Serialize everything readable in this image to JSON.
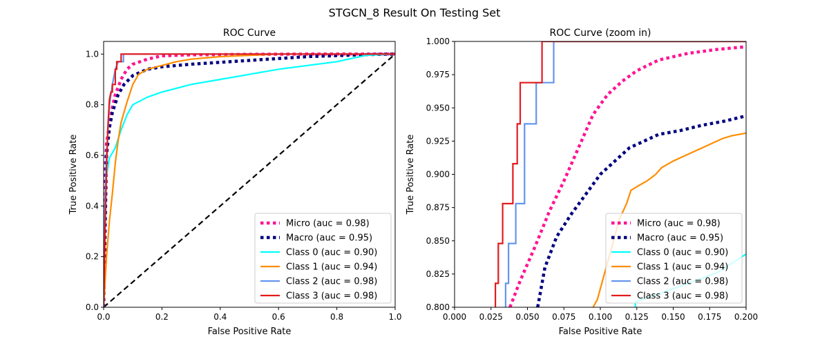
{
  "figure": {
    "suptitle": "STGCN_8 Result On Testing Set"
  },
  "legend_labels": [
    "Micro (auc = 0.98)",
    "Macro (auc = 0.95)",
    "Class 0 (auc = 0.90)",
    "Class 1 (auc = 0.94)",
    "Class 2 (auc = 0.98)",
    "Class 3 (auc = 0.98)"
  ],
  "colors": {
    "micro": "#ff1493",
    "macro": "#000080",
    "class0": "#00ffff",
    "class1": "#ff8c00",
    "class2": "#6495ed",
    "class3": "#e31a1c",
    "diagonal": "#000000"
  },
  "chart_data": [
    {
      "type": "line",
      "title": "ROC Curve",
      "xlabel": "False Positive Rate",
      "ylabel": "True Positive Rate",
      "xlim": [
        0,
        1
      ],
      "ylim": [
        0,
        1.05
      ],
      "xticks": [
        "0.0",
        "0.2",
        "0.4",
        "0.6",
        "0.8",
        "1.0"
      ],
      "yticks": [
        "0.0",
        "0.2",
        "0.4",
        "0.6",
        "0.8",
        "1.0"
      ],
      "legend_position": "lower-right",
      "grid": false,
      "series": [
        {
          "name": "Micro (auc = 0.98)",
          "style": "dotted",
          "x": [
            0,
            0.005,
            0.01,
            0.02,
            0.03,
            0.04,
            0.05,
            0.06,
            0.08,
            0.1,
            0.15,
            0.2,
            0.3,
            0.5,
            0.7,
            1.0
          ],
          "y": [
            0,
            0.52,
            0.65,
            0.72,
            0.79,
            0.84,
            0.87,
            0.9,
            0.94,
            0.96,
            0.98,
            0.993,
            0.997,
            0.999,
            1.0,
            1.0
          ]
        },
        {
          "name": "Macro (auc = 0.95)",
          "style": "dotted",
          "x": [
            0,
            0.01,
            0.02,
            0.03,
            0.05,
            0.07,
            0.1,
            0.15,
            0.2,
            0.3,
            0.5,
            0.7,
            0.9,
            1.0
          ],
          "y": [
            0,
            0.6,
            0.71,
            0.77,
            0.84,
            0.88,
            0.915,
            0.94,
            0.95,
            0.96,
            0.975,
            0.99,
            0.998,
            1.0
          ]
        },
        {
          "name": "Class 0 (auc = 0.90)",
          "style": "solid",
          "x": [
            0,
            0.005,
            0.01,
            0.02,
            0.04,
            0.06,
            0.08,
            0.1,
            0.15,
            0.2,
            0.3,
            0.4,
            0.5,
            0.6,
            0.7,
            0.8,
            0.9,
            1.0
          ],
          "y": [
            0,
            0.45,
            0.52,
            0.59,
            0.63,
            0.7,
            0.76,
            0.8,
            0.83,
            0.85,
            0.88,
            0.9,
            0.92,
            0.94,
            0.955,
            0.97,
            0.995,
            1.0
          ]
        },
        {
          "name": "Class 1 (auc = 0.94)",
          "style": "solid",
          "x": [
            0,
            0.01,
            0.02,
            0.03,
            0.04,
            0.05,
            0.06,
            0.08,
            0.1,
            0.12,
            0.15,
            0.2,
            0.25,
            0.3,
            0.4,
            0.5,
            0.6,
            0.8,
            1.0
          ],
          "y": [
            0,
            0.2,
            0.34,
            0.45,
            0.57,
            0.66,
            0.73,
            0.81,
            0.88,
            0.92,
            0.94,
            0.955,
            0.97,
            0.98,
            0.99,
            0.995,
            1.0,
            1.0,
            1.0
          ]
        },
        {
          "name": "Class 2 (auc = 0.98)",
          "style": "solid",
          "x": [
            0,
            0.005,
            0.01,
            0.02,
            0.03,
            0.04,
            0.05,
            0.06,
            0.068,
            0.068,
            1.0
          ],
          "y": [
            0,
            0.42,
            0.6,
            0.8,
            0.88,
            0.94,
            0.97,
            0.97,
            0.97,
            1.0,
            1.0
          ]
        },
        {
          "name": "Class 3 (auc = 0.98)",
          "style": "solid",
          "x": [
            0,
            0.005,
            0.01,
            0.015,
            0.02,
            0.025,
            0.03,
            0.03,
            0.04,
            0.04,
            0.045,
            0.045,
            0.06,
            0.06,
            1.0
          ],
          "y": [
            0,
            0.3,
            0.55,
            0.72,
            0.82,
            0.85,
            0.85,
            0.88,
            0.88,
            0.94,
            0.94,
            0.97,
            0.97,
            1.0,
            1.0
          ]
        }
      ]
    },
    {
      "type": "line",
      "title": "ROC Curve (zoom in)",
      "xlabel": "False Positive Rate",
      "ylabel": "True Positive Rate",
      "xlim": [
        0,
        0.2
      ],
      "ylim": [
        0.8,
        1.0
      ],
      "xticks": [
        "0.000",
        "0.025",
        "0.050",
        "0.075",
        "0.100",
        "0.125",
        "0.150",
        "0.175",
        "0.200"
      ],
      "yticks": [
        "0.800",
        "0.825",
        "0.850",
        "0.875",
        "0.900",
        "0.925",
        "0.950",
        "0.975",
        "1.000"
      ],
      "legend_position": "lower-right",
      "grid": false,
      "series": [
        {
          "name": "Micro (auc = 0.98)",
          "style": "dotted",
          "x": [
            0.038,
            0.045,
            0.055,
            0.065,
            0.075,
            0.085,
            0.095,
            0.105,
            0.115,
            0.125,
            0.14,
            0.16,
            0.18,
            0.2
          ],
          "y": [
            0.8,
            0.82,
            0.845,
            0.872,
            0.895,
            0.92,
            0.945,
            0.96,
            0.97,
            0.978,
            0.986,
            0.991,
            0.994,
            0.996
          ]
        },
        {
          "name": "Macro (auc = 0.95)",
          "style": "dotted",
          "x": [
            0.057,
            0.062,
            0.07,
            0.08,
            0.09,
            0.1,
            0.11,
            0.12,
            0.13,
            0.14,
            0.155,
            0.17,
            0.185,
            0.2
          ],
          "y": [
            0.8,
            0.83,
            0.853,
            0.87,
            0.885,
            0.9,
            0.91,
            0.92,
            0.925,
            0.93,
            0.933,
            0.937,
            0.94,
            0.944
          ]
        },
        {
          "name": "Class 0 (auc = 0.90)",
          "style": "solid",
          "x": [
            0.124,
            0.124,
            0.14,
            0.16,
            0.18,
            0.19,
            0.2
          ],
          "y": [
            0.8,
            0.804,
            0.81,
            0.818,
            0.826,
            0.833,
            0.84
          ]
        },
        {
          "name": "Class 1 (auc = 0.94)",
          "style": "solid",
          "x": [
            0.095,
            0.098,
            0.101,
            0.104,
            0.107,
            0.11,
            0.113,
            0.118,
            0.121,
            0.127,
            0.132,
            0.138,
            0.142,
            0.15,
            0.158,
            0.166,
            0.172,
            0.178,
            0.184,
            0.19,
            0.2
          ],
          "y": [
            0.8,
            0.806,
            0.818,
            0.83,
            0.842,
            0.854,
            0.866,
            0.878,
            0.888,
            0.892,
            0.895,
            0.9,
            0.905,
            0.91,
            0.914,
            0.918,
            0.921,
            0.924,
            0.927,
            0.929,
            0.931
          ]
        },
        {
          "name": "Class 2 (auc = 0.98)",
          "style": "solid",
          "x": [
            0.035,
            0.035,
            0.037,
            0.037,
            0.042,
            0.042,
            0.048,
            0.048,
            0.056,
            0.056,
            0.062,
            0.062,
            0.068,
            0.068,
            0.2
          ],
          "y": [
            0.8,
            0.818,
            0.818,
            0.848,
            0.848,
            0.878,
            0.878,
            0.938,
            0.938,
            0.969,
            0.969,
            0.969,
            0.969,
            1.0,
            1.0
          ]
        },
        {
          "name": "Class 3 (auc = 0.98)",
          "style": "solid",
          "x": [
            0.028,
            0.028,
            0.03,
            0.03,
            0.033,
            0.033,
            0.04,
            0.04,
            0.043,
            0.043,
            0.045,
            0.045,
            0.06,
            0.06,
            0.2
          ],
          "y": [
            0.8,
            0.818,
            0.818,
            0.848,
            0.848,
            0.878,
            0.878,
            0.908,
            0.908,
            0.938,
            0.938,
            0.969,
            0.969,
            1.0,
            1.0
          ]
        }
      ]
    }
  ]
}
